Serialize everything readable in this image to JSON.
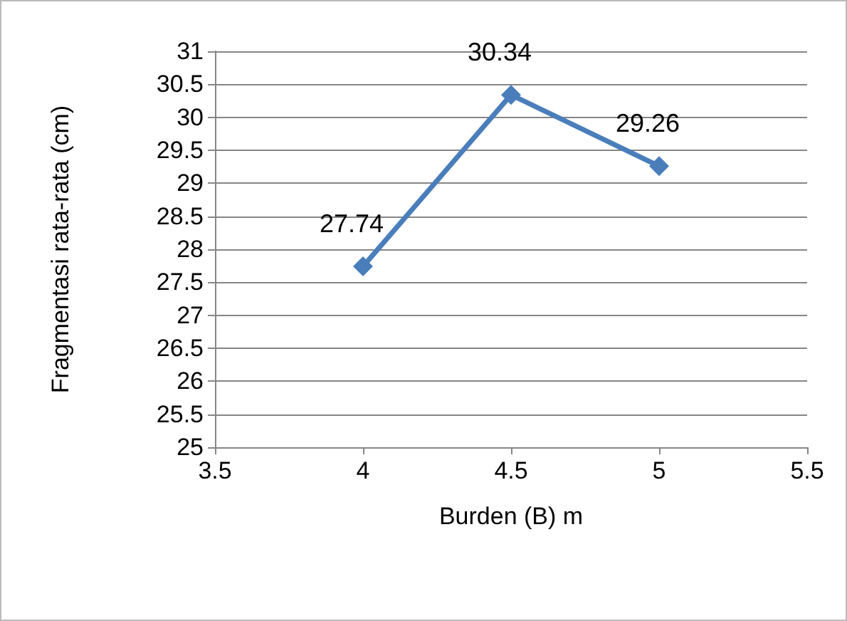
{
  "chart_data": {
    "type": "line",
    "xlabel": "Burden (B) m",
    "ylabel": "Fragmentasi rata-rata (cm)",
    "x": [
      4,
      4.5,
      5
    ],
    "series": [
      {
        "color": "#4a7ebb",
        "values": [
          27.74,
          30.34,
          29.26
        ]
      }
    ],
    "xlim": [
      3.5,
      5.5
    ],
    "xticks": [
      3.5,
      4,
      4.5,
      5,
      5.5
    ],
    "ylim": [
      25,
      31
    ],
    "yticks": [
      25,
      25.5,
      26,
      26.5,
      27,
      27.5,
      28,
      28.5,
      29,
      29.5,
      30,
      30.5,
      31
    ],
    "grid": "y",
    "marker": "diamond",
    "line_style": "solid",
    "data_labels": true
  }
}
